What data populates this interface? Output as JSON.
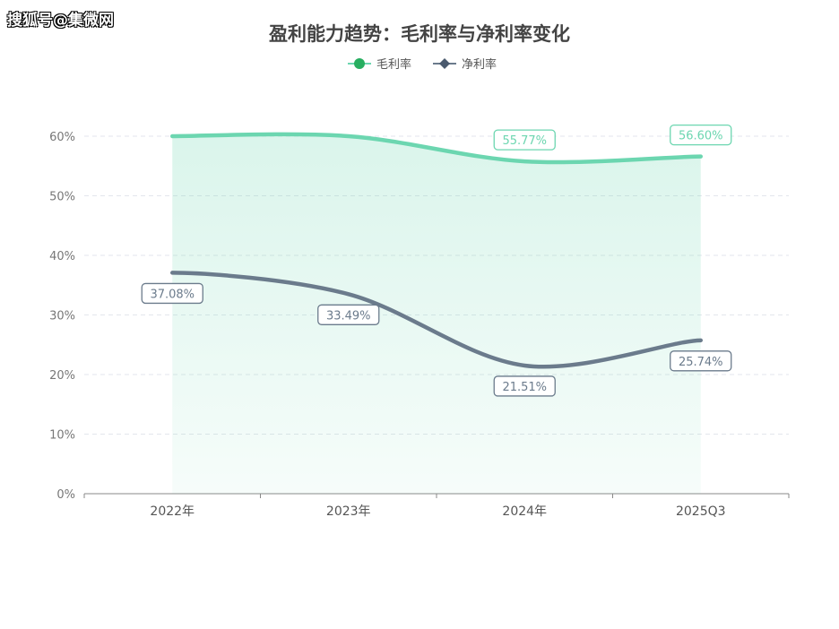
{
  "watermark": "搜狐号@集微网",
  "chart_data": {
    "type": "line",
    "title": "盈利能力趋势：毛利率与净利率变化",
    "categories": [
      "2022年",
      "2023年",
      "2024年",
      "2025Q3"
    ],
    "series": [
      {
        "name": "毛利率",
        "values": [
          null,
          null,
          55.77,
          56.6
        ],
        "labels": [
          "",
          "",
          "55.77%",
          "56.60%"
        ],
        "color": "#6cd6b0",
        "marker": "circle",
        "legend_color": "#27ae60",
        "area": true
      },
      {
        "name": "净利率",
        "values": [
          37.08,
          33.49,
          21.51,
          25.74
        ],
        "labels": [
          "37.08%",
          "33.49%",
          "21.51%",
          "25.74%"
        ],
        "color": "#6b7b8c",
        "marker": "diamond",
        "legend_color": "#4a5a6e"
      }
    ],
    "ylim": [
      0,
      60
    ],
    "yticks": [
      "0%",
      "10%",
      "20%",
      "30%",
      "40%",
      "50%",
      "60%"
    ],
    "grid": true,
    "legend": "top-center",
    "note_clipped": "毛利率 2022年/2023年 above 60%"
  }
}
